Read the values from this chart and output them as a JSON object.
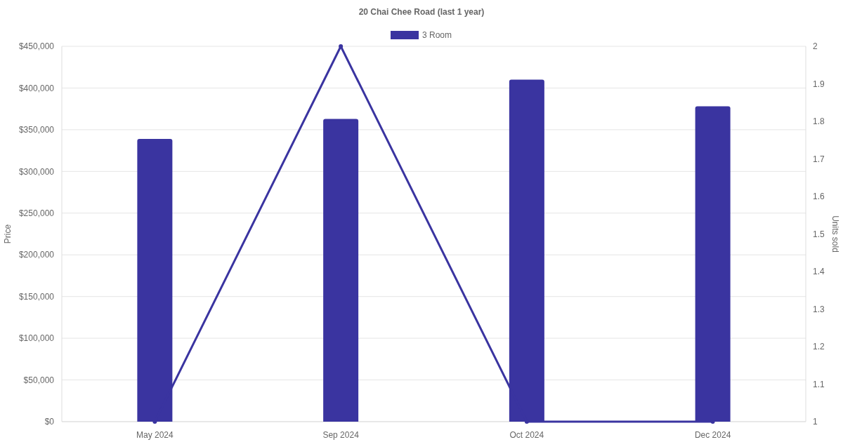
{
  "chart_data": {
    "type": "bar",
    "title": "20 Chai Chee Road (last 1 year)",
    "categories": [
      "May 2024",
      "Sep 2024",
      "Oct 2024",
      "Dec 2024"
    ],
    "series": [
      {
        "name": "3 Room",
        "color": "#3a34a0",
        "values": [
          339000,
          363000,
          410000,
          378000
        ]
      },
      {
        "type": "line",
        "axis": "y2",
        "color": "#3a34a0",
        "values": [
          1,
          2,
          1,
          1
        ]
      }
    ],
    "ylabel": "Price",
    "y2label": "Units sold",
    "ylim": [
      0,
      450000
    ],
    "yticks": [
      {
        "value": 0,
        "label": "$0"
      },
      {
        "value": 50000,
        "label": "$50,000"
      },
      {
        "value": 100000,
        "label": "$100,000"
      },
      {
        "value": 150000,
        "label": "$150,000"
      },
      {
        "value": 200000,
        "label": "$200,000"
      },
      {
        "value": 250000,
        "label": "$250,000"
      },
      {
        "value": 300000,
        "label": "$300,000"
      },
      {
        "value": 350000,
        "label": "$350,000"
      },
      {
        "value": 400000,
        "label": "$400,000"
      },
      {
        "value": 450000,
        "label": "$450,000"
      }
    ],
    "y2lim": [
      1,
      2
    ],
    "y2ticks": [
      1,
      1.1,
      1.2,
      1.3,
      1.4,
      1.5,
      1.6,
      1.7,
      1.8,
      1.9,
      2
    ],
    "grid": "y",
    "legend": "top",
    "marker": "circle",
    "line_style": "solid"
  }
}
